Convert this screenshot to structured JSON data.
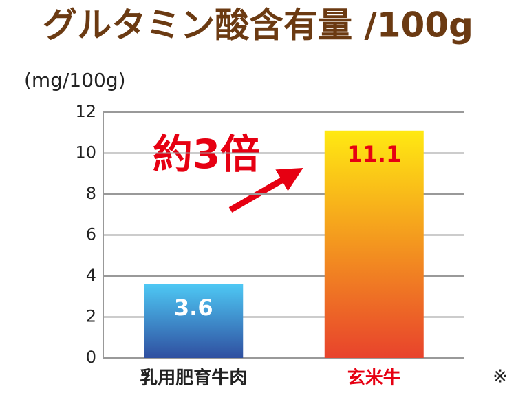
{
  "chart_data": {
    "type": "bar",
    "title": "グルタミン酸含有量 /100g",
    "y_label": "(mg/100g)",
    "categories": [
      "乳用肥育牛肉",
      "玄米牛"
    ],
    "values": [
      3.6,
      11.1
    ],
    "colors": [
      [
        "#4ec8f4",
        "#2f4fa0"
      ],
      [
        "#ffe912",
        "#e8432c"
      ]
    ],
    "value_label_colors": [
      "#ffffff",
      "#e60012"
    ],
    "category_label_colors": [
      "#222222",
      "#e60012"
    ],
    "ylim": [
      0,
      12
    ],
    "yticks": [
      0,
      2,
      4,
      6,
      8,
      10,
      12
    ],
    "grid": true,
    "annotation": "約3倍",
    "note": "※"
  }
}
